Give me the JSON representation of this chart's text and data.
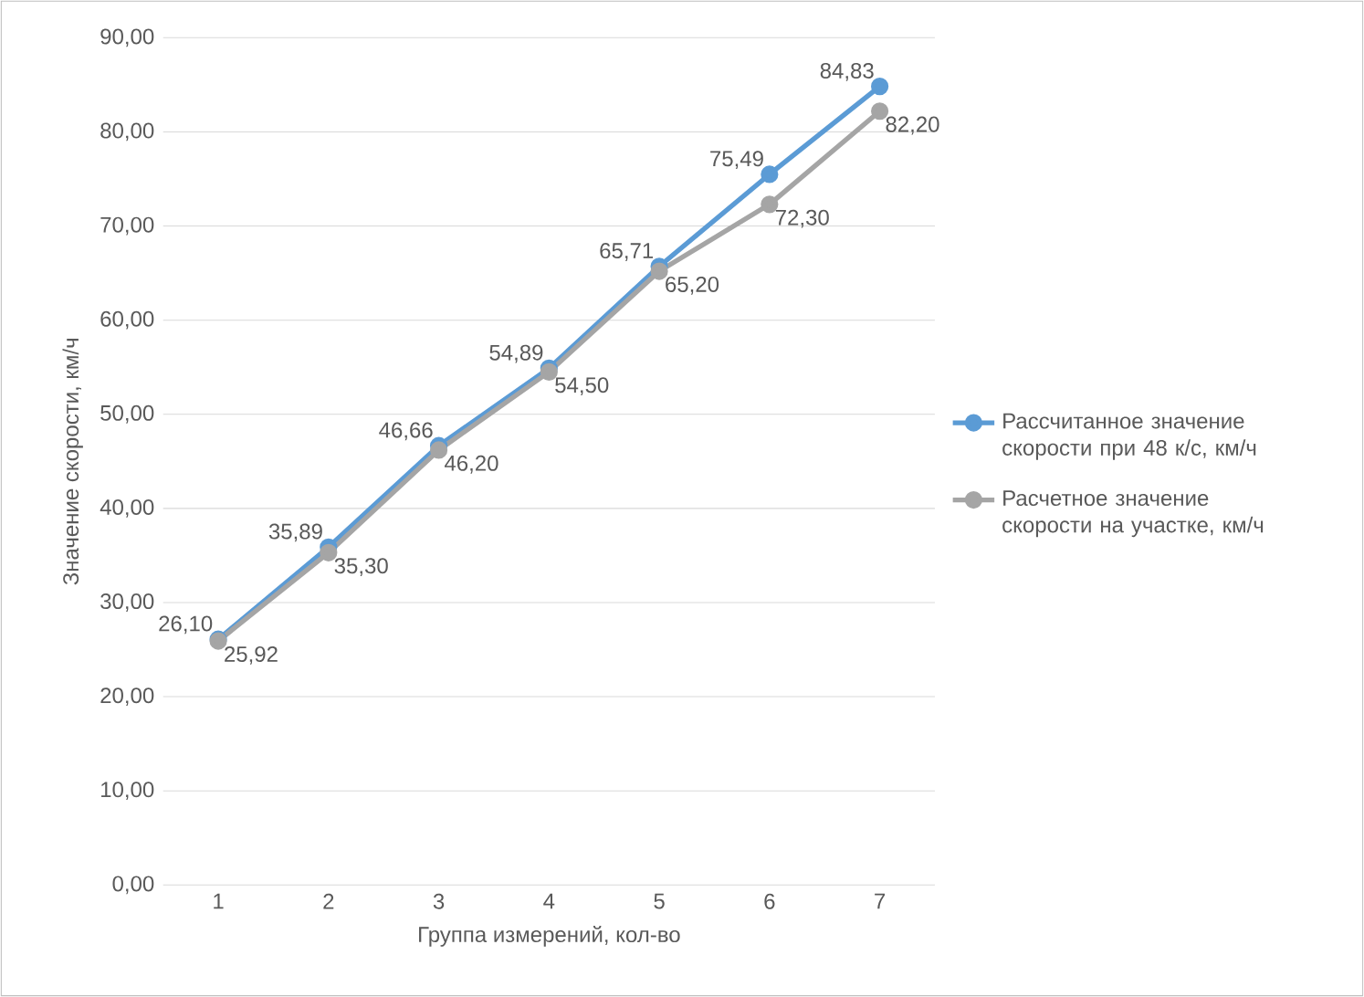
{
  "chart_data": {
    "type": "line",
    "xlabel": "Группа измерений, кол-во",
    "ylabel": "Значение скорости, км/ч",
    "categories": [
      "1",
      "2",
      "3",
      "4",
      "5",
      "6",
      "7"
    ],
    "series": [
      {
        "name": "Рассчитанное значение скорости при 48 к/с, км/ч",
        "color": "#5b9bd5",
        "values": [
          26.1,
          35.89,
          46.66,
          54.89,
          65.71,
          75.49,
          84.83
        ],
        "value_labels": [
          "26,10",
          "35,89",
          "46,66",
          "54,89",
          "65,71",
          "75,49",
          "84,83"
        ]
      },
      {
        "name": "Расчетное значение скорости на участке, км/ч",
        "color": "#a5a5a5",
        "values": [
          25.92,
          35.3,
          46.2,
          54.5,
          65.2,
          72.3,
          82.2
        ],
        "value_labels": [
          "25,92",
          "35,30",
          "46,20",
          "54,50",
          "65,20",
          "72,30",
          "82,20"
        ]
      }
    ],
    "ylim": [
      0,
      90
    ],
    "yticks": [
      {
        "value": 0,
        "label": "0,00"
      },
      {
        "value": 10,
        "label": "10,00"
      },
      {
        "value": 20,
        "label": "20,00"
      },
      {
        "value": 30,
        "label": "30,00"
      },
      {
        "value": 40,
        "label": "40,00"
      },
      {
        "value": 50,
        "label": "50,00"
      },
      {
        "value": 60,
        "label": "60,00"
      },
      {
        "value": 70,
        "label": "70,00"
      },
      {
        "value": 80,
        "label": "80,00"
      },
      {
        "value": 90,
        "label": "90,00"
      }
    ],
    "grid": "y",
    "legend": "right",
    "marker": "circle",
    "line_style": "solid"
  }
}
